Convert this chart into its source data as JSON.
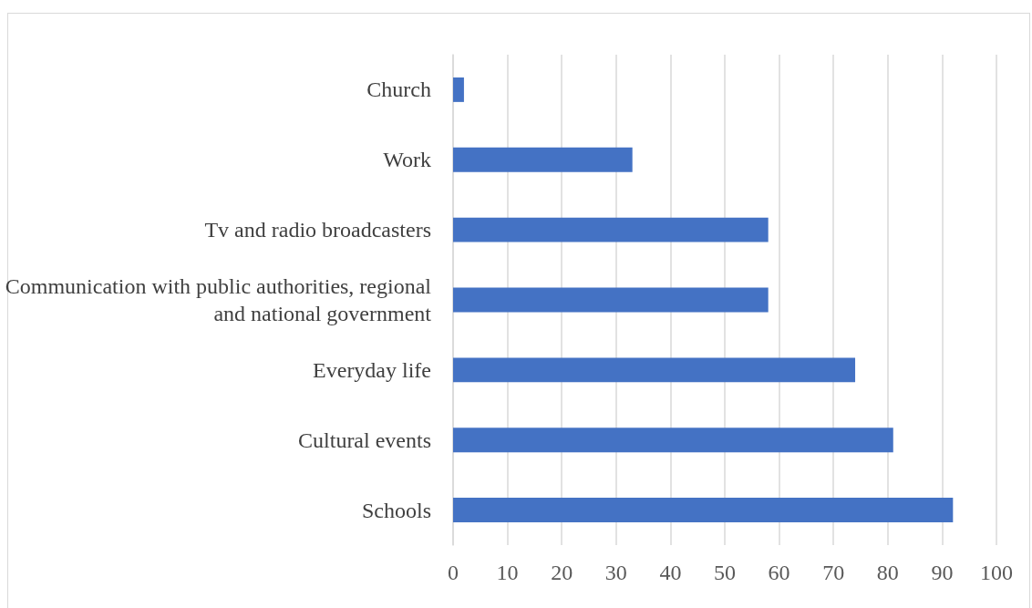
{
  "chart_data": {
    "type": "bar",
    "orientation": "horizontal",
    "categories": [
      "Church",
      "Work",
      "Tv and radio broadcasters",
      "Communication with public authorities, regional and national government",
      "Everyday life",
      "Cultural events",
      "Schools"
    ],
    "values": [
      2,
      33,
      58,
      58,
      74,
      81,
      92
    ],
    "color": "#4472c4",
    "xlim": [
      0,
      100
    ],
    "xticks": [
      0,
      10,
      20,
      30,
      40,
      50,
      60,
      70,
      80,
      90,
      100
    ],
    "grid": "x"
  }
}
